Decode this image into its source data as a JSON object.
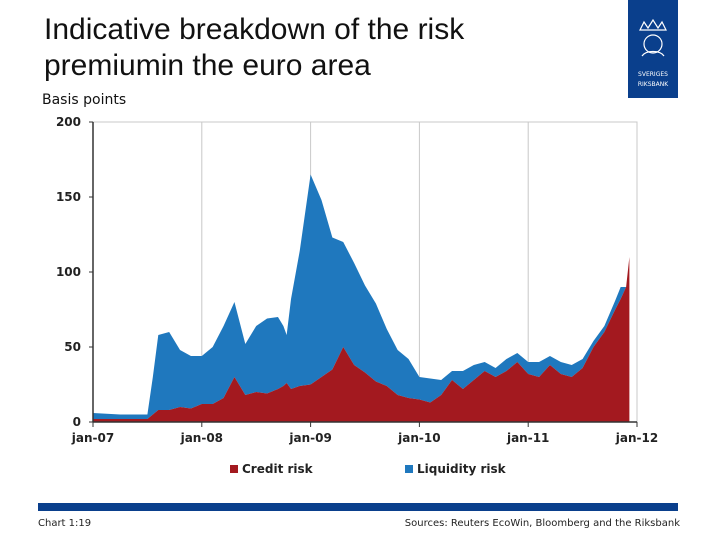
{
  "header": {
    "title": "Indicative breakdown of the risk premiumin the euro area",
    "y_unit_label": "Basis points"
  },
  "logo": {
    "text_line1": "SVERIGES",
    "text_line2": "RIKSBANK",
    "color": "#0a3f8c"
  },
  "footer": {
    "chart_number": "Chart 1:19",
    "sources": "Sources: Reuters EcoWin, Bloomberg and the Riksbank"
  },
  "colors": {
    "credit": "#a3191f",
    "liquidity": "#1f78be",
    "footer_bar": "#0a3f8c"
  },
  "chart_data": {
    "type": "area",
    "stacked": true,
    "x_ticks": [
      "jan-07",
      "jan-08",
      "jan-09",
      "jan-10",
      "jan-11",
      "jan-12"
    ],
    "x_tick_years": [
      2007,
      2008,
      2009,
      2010,
      2011,
      2012
    ],
    "y_ticks": [
      0,
      50,
      100,
      150,
      200
    ],
    "ylim": [
      0,
      200
    ],
    "xlim": [
      2007.0,
      2012.0
    ],
    "grid": {
      "vertical": true,
      "horizontal": false
    },
    "legend_position": "bottom",
    "x": [
      2007.0,
      2007.25,
      2007.5,
      2007.55,
      2007.6,
      2007.7,
      2007.8,
      2007.9,
      2008.0,
      2008.1,
      2008.2,
      2008.3,
      2008.4,
      2008.5,
      2008.6,
      2008.7,
      2008.75,
      2008.78,
      2008.82,
      2008.9,
      2009.0,
      2009.1,
      2009.2,
      2009.3,
      2009.4,
      2009.5,
      2009.6,
      2009.7,
      2009.8,
      2009.9,
      2010.0,
      2010.1,
      2010.2,
      2010.3,
      2010.4,
      2010.5,
      2010.6,
      2010.7,
      2010.8,
      2010.9,
      2011.0,
      2011.1,
      2011.2,
      2011.3,
      2011.4,
      2011.5,
      2011.6,
      2011.7,
      2011.8,
      2011.85,
      2011.9,
      2011.93
    ],
    "series": [
      {
        "name": "Credit risk",
        "values": [
          2,
          2,
          2,
          5,
          8,
          8,
          10,
          9,
          12,
          12,
          16,
          30,
          18,
          20,
          19,
          22,
          24,
          26,
          22,
          24,
          25,
          30,
          35,
          50,
          38,
          33,
          27,
          24,
          18,
          16,
          15,
          13,
          18,
          28,
          22,
          28,
          34,
          30,
          34,
          40,
          32,
          30,
          38,
          32,
          30,
          36,
          50,
          60,
          75,
          82,
          90,
          110
        ]
      },
      {
        "name": "Liquidity risk",
        "values": [
          4,
          3,
          3,
          25,
          50,
          52,
          38,
          35,
          32,
          38,
          48,
          50,
          34,
          44,
          50,
          48,
          40,
          32,
          60,
          90,
          140,
          118,
          88,
          70,
          68,
          58,
          52,
          38,
          30,
          26,
          15,
          16,
          10,
          6,
          12,
          10,
          6,
          6,
          8,
          6,
          8,
          10,
          6,
          8,
          8,
          6,
          4,
          4,
          6,
          8,
          0,
          0
        ]
      }
    ]
  }
}
